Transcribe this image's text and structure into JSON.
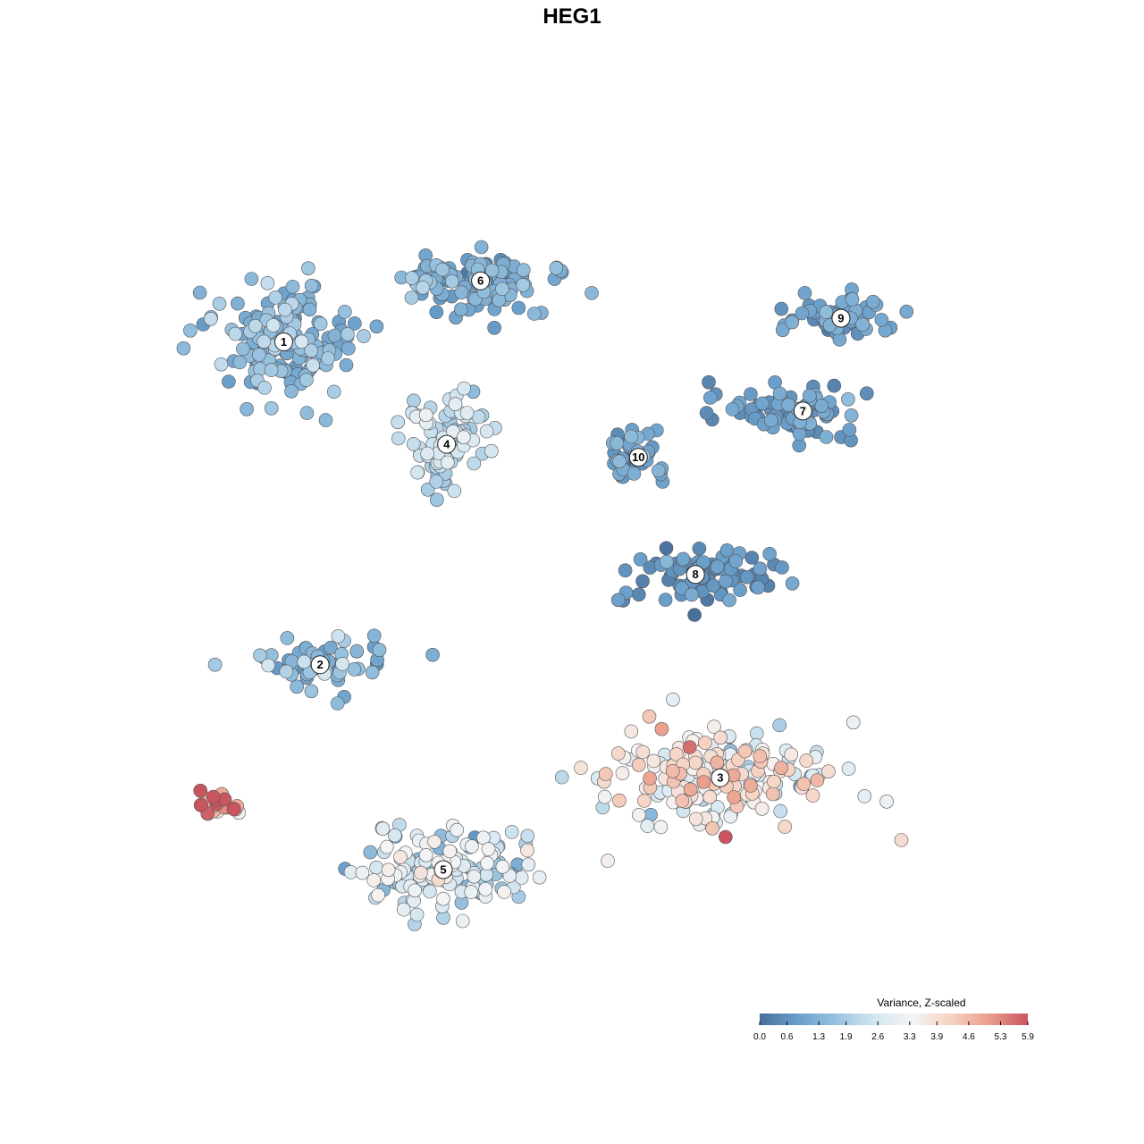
{
  "chart_data": {
    "type": "scatter",
    "title": "HEG1",
    "xlabel": "",
    "ylabel": "",
    "grid": false,
    "axes_visible": false,
    "xlim": [
      0,
      100
    ],
    "ylim": [
      0,
      100
    ],
    "point_style": {
      "outline_color": "#555555"
    },
    "colorbar": {
      "title": "Variance, Z-scaled",
      "placement": "bottom-right",
      "min": 0.0,
      "max": 5.9,
      "ticks": [
        0.0,
        0.6,
        1.3,
        1.9,
        2.6,
        3.3,
        3.9,
        4.6,
        5.3,
        5.9
      ],
      "tick_labels": [
        "0.0",
        "0.6",
        "1.3",
        "1.9",
        "2.6",
        "3.3",
        "3.9",
        "4.6",
        "5.3",
        "5.9"
      ],
      "colors": [
        "#4a6f9b",
        "#6a9fcb",
        "#97c2df",
        "#d4e6f1",
        "#f4f4f4",
        "#f6d2c2",
        "#ea9d8b",
        "#c9555f"
      ]
    },
    "clusters": [
      {
        "label": "1",
        "x": 12.7,
        "y": 78.3,
        "value_mean": 1.4,
        "value_sd": 0.45,
        "n": 170,
        "spread": [
          7.5,
          6.0
        ]
      },
      {
        "label": "6",
        "x": 36.5,
        "y": 85.8,
        "value_mean": 1.1,
        "value_sd": 0.35,
        "n": 110,
        "spread": [
          9.0,
          3.5
        ]
      },
      {
        "label": "4",
        "x": 32.4,
        "y": 65.7,
        "value_mean": 2.2,
        "value_sd": 0.45,
        "n": 95,
        "spread": [
          4.5,
          5.0
        ]
      },
      {
        "label": "9",
        "x": 80.1,
        "y": 81.2,
        "value_mean": 0.9,
        "value_sd": 0.35,
        "n": 55,
        "spread": [
          6.0,
          2.5
        ]
      },
      {
        "label": "7",
        "x": 75.5,
        "y": 69.8,
        "value_mean": 0.8,
        "value_sd": 0.3,
        "n": 80,
        "spread": [
          8.0,
          3.0
        ]
      },
      {
        "label": "10",
        "x": 55.6,
        "y": 64.1,
        "value_mean": 0.9,
        "value_sd": 0.35,
        "n": 35,
        "spread": [
          3.5,
          3.5
        ]
      },
      {
        "label": "8",
        "x": 62.5,
        "y": 49.7,
        "value_mean": 0.6,
        "value_sd": 0.3,
        "n": 80,
        "spread": [
          8.5,
          3.0
        ]
      },
      {
        "label": "2",
        "x": 17.1,
        "y": 38.6,
        "value_mean": 1.4,
        "value_sd": 0.5,
        "n": 60,
        "spread": [
          7.5,
          3.0
        ]
      },
      {
        "label": "3",
        "x": 65.5,
        "y": 24.7,
        "value_mean": 3.4,
        "value_sd": 0.9,
        "n": 190,
        "spread": [
          14.0,
          5.5
        ]
      },
      {
        "label": "5",
        "x": 32.0,
        "y": 13.4,
        "value_mean": 2.6,
        "value_sd": 0.7,
        "n": 150,
        "spread": [
          10.0,
          4.5
        ]
      },
      {
        "label": "",
        "x": 5.2,
        "y": 21.3,
        "value_mean": 4.9,
        "value_sd": 0.8,
        "n": 28,
        "spread": [
          3.0,
          1.8
        ]
      }
    ]
  }
}
